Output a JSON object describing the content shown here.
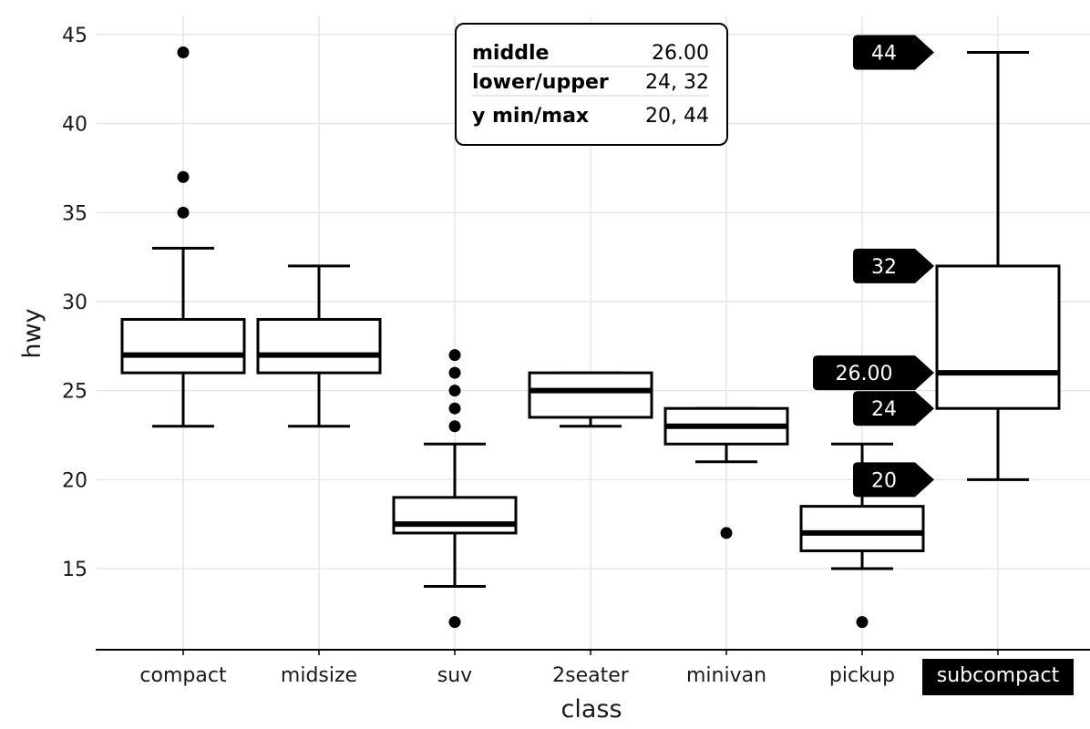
{
  "chart_data": {
    "type": "boxplot",
    "xlabel": "class",
    "ylabel": "hwy",
    "ylim": [
      11,
      45.5
    ],
    "yticks": [
      15,
      20,
      25,
      30,
      35,
      40,
      45
    ],
    "grid": true,
    "categories": [
      "compact",
      "midsize",
      "suv",
      "2seater",
      "minivan",
      "pickup",
      "subcompact"
    ],
    "highlighted_category": "subcompact",
    "boxes": [
      {
        "category": "compact",
        "lower_whisker": 23,
        "q1": 26,
        "median": 27,
        "q3": 29,
        "upper_whisker": 33,
        "outliers": [
          35,
          37,
          44
        ]
      },
      {
        "category": "midsize",
        "lower_whisker": 23,
        "q1": 26,
        "median": 27,
        "q3": 29,
        "upper_whisker": 32,
        "outliers": []
      },
      {
        "category": "suv",
        "lower_whisker": 14,
        "q1": 17,
        "median": 17.5,
        "q3": 19,
        "upper_whisker": 22,
        "outliers": [
          12,
          23,
          24,
          25,
          26,
          27
        ]
      },
      {
        "category": "2seater",
        "lower_whisker": 23,
        "q1": 23.5,
        "median": 25,
        "q3": 26,
        "upper_whisker": 26,
        "outliers": []
      },
      {
        "category": "minivan",
        "lower_whisker": 21,
        "q1": 22,
        "median": 23,
        "q3": 24,
        "upper_whisker": 24,
        "outliers": [
          17
        ]
      },
      {
        "category": "pickup",
        "lower_whisker": 15,
        "q1": 16,
        "median": 17,
        "q3": 18.5,
        "upper_whisker": 22,
        "outliers": [
          12
        ]
      },
      {
        "category": "subcompact",
        "lower_whisker": 20,
        "q1": 24,
        "median": 26,
        "q3": 32,
        "upper_whisker": 44,
        "outliers": []
      }
    ],
    "tooltip": {
      "rows": [
        {
          "label": "middle",
          "value": "26.00"
        },
        {
          "label": "lower/upper",
          "value": "24, 32"
        },
        {
          "label": "y min/max",
          "value": "20, 44"
        }
      ]
    },
    "callouts": [
      {
        "text": "44",
        "value": 44
      },
      {
        "text": "32",
        "value": 32
      },
      {
        "text": "26.00",
        "value": 26
      },
      {
        "text": "24",
        "value": 24
      },
      {
        "text": "20",
        "value": 20
      }
    ]
  }
}
